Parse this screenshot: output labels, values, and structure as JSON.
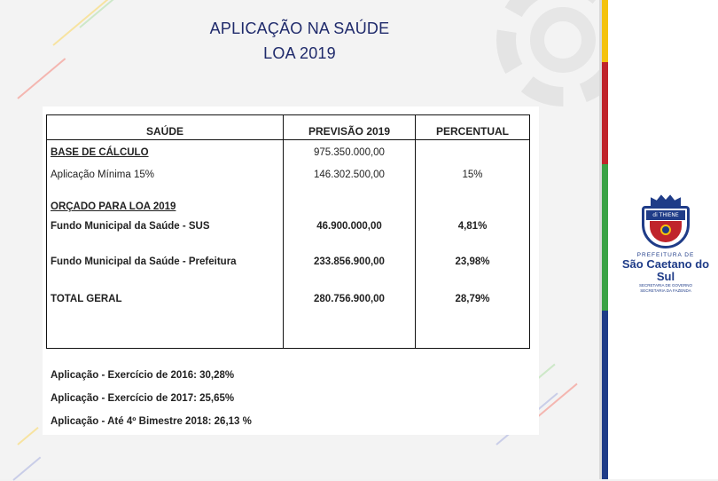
{
  "title": {
    "line1": "APLICAÇÃO NA SAÚDE",
    "line2": "LOA 2019"
  },
  "table": {
    "headers": [
      "SAÚDE",
      "PREVISÃO 2019",
      "PERCENTUAL"
    ],
    "rows": [
      {
        "label": "BASE DE CÁLCULO",
        "value": "975.350.000,00",
        "percent": ""
      },
      {
        "label": "Aplicação Mínima 15%",
        "value": "146.302.500,00",
        "percent": "15%"
      },
      {
        "label": "ORÇADO PARA LOA 2019",
        "value": "",
        "percent": ""
      },
      {
        "label": "Fundo Municipal da Saúde - SUS",
        "value": "46.900.000,00",
        "percent": "4,81%"
      },
      {
        "label": "Fundo Municipal da Saúde - Prefeitura",
        "value": "233.856.900,00",
        "percent": "23,98%"
      },
      {
        "label": "TOTAL GERAL",
        "value": "280.756.900,00",
        "percent": "28,79%"
      }
    ]
  },
  "notes": [
    "Aplicação - Exercício de 2016: 30,28%",
    "Aplicação - Exercício de 2017: 25,65%",
    "Aplicação - Até 4º Bimestre 2018: 26,13 %"
  ],
  "logo": {
    "crest_banner": "di THIENE",
    "small_text": "PREFEITURA DE",
    "name": "São Caetano do Sul",
    "sub_line1": "SECRETARIA DE GOVERNO",
    "sub_line2": "SECRETARIA DA FAZENDA"
  },
  "colors": {
    "title": "#1f2a6b",
    "stripe_yellow": "#f4c20d",
    "stripe_red": "#c0242b",
    "stripe_green": "#3aa245",
    "stripe_blue": "#1f3c88"
  }
}
